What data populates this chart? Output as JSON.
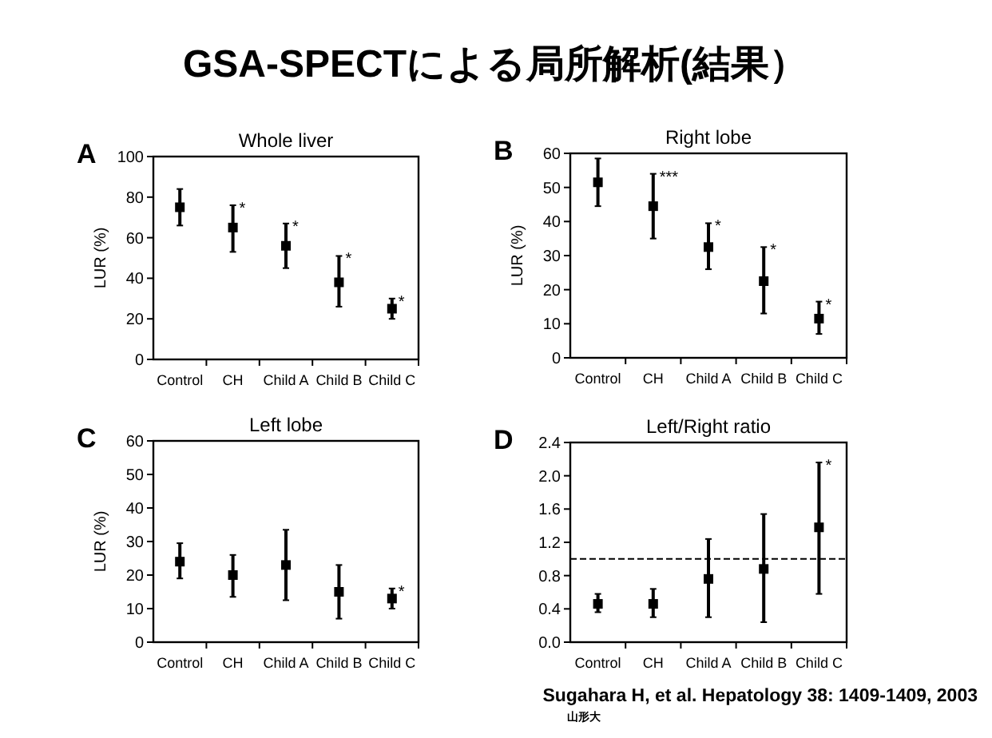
{
  "chart_data": [
    {
      "type": "scatter",
      "title": "GSA-SPECTによる局所解析(結果）",
      "subtitle": "Whole liver",
      "ylabel": "LUR (%)",
      "categories": [
        "Control",
        "CH",
        "Child A",
        "Child B",
        "Child C"
      ],
      "marker": "square",
      "color": "#000000",
      "values": [
        75,
        65,
        56,
        38,
        25
      ],
      "errors": [
        [
          66,
          84
        ],
        [
          53,
          76
        ],
        [
          45,
          67
        ],
        [
          26,
          51
        ],
        [
          20,
          30
        ]
      ],
      "ylim": [
        0,
        100
      ],
      "yticks": [
        0,
        20,
        40,
        60,
        80,
        100
      ],
      "annotations": [
        "A",
        {
          "text": "*",
          "x": "CH",
          "y": 76
        },
        {
          "text": "*",
          "x": "Child A",
          "y": 67
        },
        {
          "text": "*",
          "x": "Child B",
          "y": 51
        },
        {
          "text": "*",
          "x": "Child C",
          "y": 30
        }
      ]
    },
    {
      "type": "scatter",
      "title": "Right lobe",
      "ylabel": "LUR (%)",
      "categories": [
        "Control",
        "CH",
        "Child A",
        "Child B",
        "Child C"
      ],
      "marker": "square",
      "color": "#000000",
      "values": [
        51.5,
        44.5,
        32.5,
        22.5,
        11.5
      ],
      "errors": [
        [
          44.5,
          58.5
        ],
        [
          35,
          54
        ],
        [
          26,
          39.5
        ],
        [
          13,
          32.5
        ],
        [
          7,
          16.5
        ]
      ],
      "ylim": [
        0,
        60
      ],
      "yticks": [
        0,
        10,
        20,
        30,
        40,
        50,
        60
      ],
      "annotations": [
        "B",
        {
          "text": "***",
          "x": "CH",
          "y": 54
        },
        {
          "text": "*",
          "x": "Child A",
          "y": 39.5
        },
        {
          "text": "*",
          "x": "Child B",
          "y": 32.5
        },
        {
          "text": "*",
          "x": "Child C",
          "y": 16.5
        }
      ]
    },
    {
      "type": "scatter",
      "title": "Left lobe",
      "ylabel": "LUR (%)",
      "categories": [
        "Control",
        "CH",
        "Child A",
        "Child B",
        "Child C"
      ],
      "marker": "square",
      "color": "#000000",
      "values": [
        24,
        20,
        23,
        15,
        13
      ],
      "errors": [
        [
          19,
          29.5
        ],
        [
          13.5,
          26
        ],
        [
          12.5,
          33.5
        ],
        [
          7,
          23
        ],
        [
          10,
          16
        ]
      ],
      "ylim": [
        0,
        60
      ],
      "yticks": [
        0,
        10,
        20,
        30,
        40,
        50,
        60
      ],
      "annotations": [
        "C",
        {
          "text": "*",
          "x": "Child C",
          "y": 16
        }
      ]
    },
    {
      "type": "scatter",
      "title": "Left/Right ratio",
      "categories": [
        "Control",
        "CH",
        "Child A",
        "Child B",
        "Child C"
      ],
      "marker": "square",
      "color": "#000000",
      "values": [
        0.46,
        0.46,
        0.76,
        0.88,
        1.38
      ],
      "errors": [
        [
          0.36,
          0.58
        ],
        [
          0.3,
          0.64
        ],
        [
          0.3,
          1.24
        ],
        [
          0.24,
          1.54
        ],
        [
          0.58,
          2.16
        ]
      ],
      "ylim": [
        0,
        2.4
      ],
      "yticks": [
        {
          "value": 0,
          "label": "0.0"
        },
        {
          "value": 0.4,
          "label": "0.4"
        },
        {
          "value": 0.8,
          "label": "0.8"
        },
        {
          "value": 1.2,
          "label": "1.2"
        },
        {
          "value": 1.6,
          "label": "1.6"
        },
        {
          "value": 2.0,
          "label": "2.0"
        },
        {
          "value": 2.4,
          "label": "2.4"
        }
      ],
      "ref_lines": [
        {
          "axis": "y",
          "value": 1.0,
          "line_style": "dashed"
        }
      ],
      "annotations": [
        "D",
        {
          "text": "*",
          "x": "Child C",
          "y": 2.16
        },
        "Sugahara  H, et al. Hepatology 38: 1409-1409, 2003",
        "山形大"
      ]
    }
  ]
}
